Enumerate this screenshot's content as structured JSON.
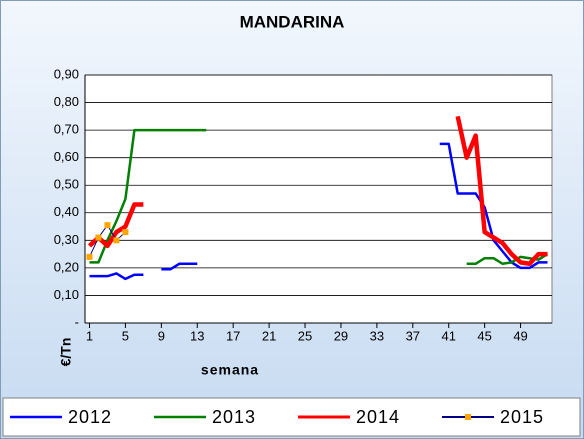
{
  "chart_data": {
    "type": "line",
    "title": "MANDARINA",
    "x_label": "semana",
    "y_label": "€/Tn",
    "x": [
      1,
      2,
      3,
      4,
      5,
      6,
      7,
      8,
      9,
      10,
      11,
      12,
      13,
      14,
      15,
      16,
      17,
      18,
      19,
      20,
      21,
      22,
      23,
      24,
      25,
      26,
      27,
      28,
      29,
      30,
      31,
      32,
      33,
      34,
      35,
      36,
      37,
      38,
      39,
      40,
      41,
      42,
      43,
      44,
      45,
      46,
      47,
      48,
      49,
      50,
      51,
      52
    ],
    "xlim": [
      0.5,
      52.5
    ],
    "xticks": [
      1,
      5,
      9,
      13,
      17,
      21,
      25,
      29,
      33,
      37,
      41,
      45,
      49
    ],
    "ylim": [
      0,
      0.9
    ],
    "yticks": [
      {
        "value": 0,
        "label": "-"
      },
      {
        "value": 0.1,
        "label": "0,10"
      },
      {
        "value": 0.2,
        "label": "0,20"
      },
      {
        "value": 0.3,
        "label": "0,30"
      },
      {
        "value": 0.4,
        "label": "0,40"
      },
      {
        "value": 0.5,
        "label": "0,50"
      },
      {
        "value": 0.6,
        "label": "0,60"
      },
      {
        "value": 0.7,
        "label": "0,70"
      },
      {
        "value": 0.8,
        "label": "0,80"
      },
      {
        "value": 0.9,
        "label": "0,90"
      }
    ],
    "grid": true,
    "legend": "bottom",
    "series": [
      {
        "name": "2012",
        "color": "#0000ff",
        "width": 2.5,
        "values": [
          0.17,
          0.17,
          0.17,
          0.18,
          0.16,
          0.175,
          0.175,
          null,
          0.195,
          0.195,
          0.215,
          0.215,
          0.215,
          null,
          null,
          null,
          null,
          null,
          null,
          null,
          null,
          null,
          null,
          null,
          null,
          null,
          null,
          null,
          null,
          null,
          null,
          null,
          null,
          null,
          null,
          null,
          null,
          null,
          null,
          0.65,
          0.65,
          0.47,
          0.47,
          0.47,
          0.42,
          0.3,
          0.26,
          0.22,
          0.2,
          0.2,
          0.22,
          0.22
        ]
      },
      {
        "name": "2013",
        "color": "#008000",
        "width": 2.5,
        "values": [
          0.22,
          0.22,
          0.3,
          0.37,
          0.45,
          0.7,
          0.7,
          0.7,
          0.7,
          0.7,
          0.7,
          0.7,
          0.7,
          0.7,
          null,
          null,
          null,
          null,
          null,
          null,
          null,
          null,
          null,
          null,
          null,
          null,
          null,
          null,
          null,
          null,
          null,
          null,
          null,
          null,
          null,
          null,
          null,
          null,
          null,
          null,
          null,
          null,
          0.215,
          0.215,
          0.235,
          0.235,
          0.215,
          0.22,
          0.24,
          0.235,
          0.23,
          0.25
        ]
      },
      {
        "name": "2014",
        "color": "#ff0000",
        "width": 4.5,
        "values": [
          0.28,
          0.31,
          0.28,
          0.33,
          0.35,
          0.43,
          0.43,
          null,
          null,
          null,
          null,
          null,
          null,
          null,
          null,
          null,
          null,
          null,
          null,
          null,
          null,
          null,
          null,
          null,
          null,
          null,
          null,
          null,
          null,
          null,
          null,
          null,
          null,
          null,
          null,
          null,
          null,
          null,
          null,
          null,
          null,
          0.75,
          0.6,
          0.68,
          0.33,
          0.31,
          0.29,
          0.25,
          0.22,
          0.215,
          0.25,
          0.25
        ]
      },
      {
        "name": "2015",
        "color": "#000080",
        "marker_color": "#ffa500",
        "width": 1,
        "values": [
          0.24,
          0.31,
          0.355,
          0.3,
          0.33,
          null,
          null,
          null,
          null,
          null,
          null,
          null,
          null,
          null,
          null,
          null,
          null,
          null,
          null,
          null,
          null,
          null,
          null,
          null,
          null,
          null,
          null,
          null,
          null,
          null,
          null,
          null,
          null,
          null,
          null,
          null,
          null,
          null,
          null,
          null,
          null,
          null,
          null,
          null,
          null,
          null,
          null,
          null,
          null,
          null,
          null,
          null
        ]
      }
    ]
  }
}
